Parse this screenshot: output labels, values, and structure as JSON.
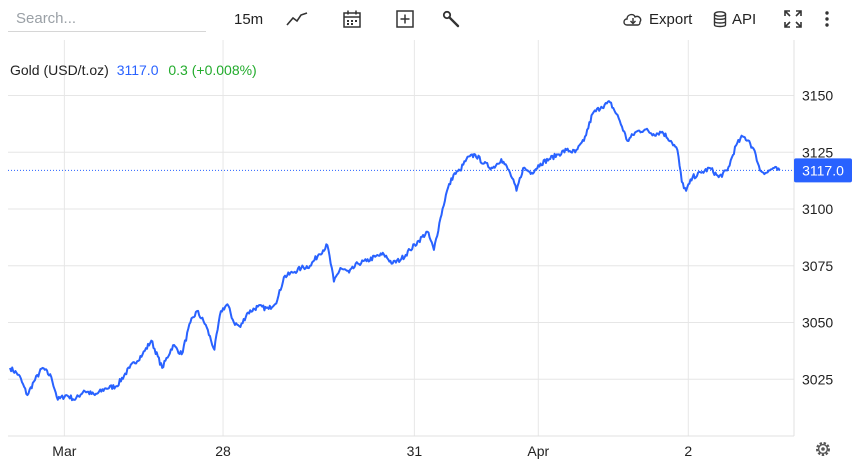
{
  "toolbar": {
    "search_placeholder": "Search...",
    "interval": "15m",
    "export_label": "Export",
    "api_label": "API"
  },
  "legend": {
    "symbol": "Gold (USD/t.oz)",
    "price": "3117.0",
    "change": "0.3 (+0.008%)"
  },
  "colors": {
    "line": "#2962ff",
    "up": "#22ab2c",
    "badge": "#2962ff",
    "grid": "#e6e6e6"
  },
  "chart_data": {
    "type": "line",
    "ylim": [
      3000,
      3160
    ],
    "y_ticks": [
      3025,
      3050,
      3075,
      3100,
      3125,
      3150
    ],
    "x_ticks": [
      {
        "label": "Mar",
        "idx": 50
      },
      {
        "label": "28",
        "idx": 196
      },
      {
        "label": "31",
        "idx": 372
      },
      {
        "label": "Apr",
        "idx": 486
      },
      {
        "label": "2",
        "idx": 624
      }
    ],
    "last_price": 3117.0,
    "anchors": [
      [
        0,
        3030
      ],
      [
        8,
        3027
      ],
      [
        16,
        3018
      ],
      [
        22,
        3024
      ],
      [
        30,
        3030
      ],
      [
        38,
        3026
      ],
      [
        44,
        3016
      ],
      [
        52,
        3018
      ],
      [
        60,
        3016
      ],
      [
        68,
        3020
      ],
      [
        78,
        3018
      ],
      [
        88,
        3021
      ],
      [
        98,
        3022
      ],
      [
        110,
        3030
      ],
      [
        122,
        3036
      ],
      [
        130,
        3042
      ],
      [
        140,
        3030
      ],
      [
        150,
        3040
      ],
      [
        158,
        3036
      ],
      [
        166,
        3050
      ],
      [
        172,
        3055
      ],
      [
        180,
        3049
      ],
      [
        188,
        3038
      ],
      [
        194,
        3055
      ],
      [
        200,
        3058
      ],
      [
        206,
        3050
      ],
      [
        212,
        3048
      ],
      [
        218,
        3054
      ],
      [
        228,
        3057
      ],
      [
        238,
        3056
      ],
      [
        246,
        3060
      ],
      [
        252,
        3070
      ],
      [
        260,
        3072
      ],
      [
        268,
        3074
      ],
      [
        276,
        3075
      ],
      [
        284,
        3080
      ],
      [
        292,
        3084
      ],
      [
        298,
        3068
      ],
      [
        304,
        3074
      ],
      [
        312,
        3072
      ],
      [
        320,
        3076
      ],
      [
        328,
        3077
      ],
      [
        336,
        3079
      ],
      [
        344,
        3080
      ],
      [
        352,
        3076
      ],
      [
        360,
        3078
      ],
      [
        368,
        3082
      ],
      [
        376,
        3086
      ],
      [
        384,
        3090
      ],
      [
        390,
        3082
      ],
      [
        396,
        3096
      ],
      [
        402,
        3108
      ],
      [
        408,
        3115
      ],
      [
        414,
        3117
      ],
      [
        420,
        3122
      ],
      [
        428,
        3124
      ],
      [
        436,
        3120
      ],
      [
        444,
        3118
      ],
      [
        452,
        3122
      ],
      [
        460,
        3116
      ],
      [
        466,
        3108
      ],
      [
        472,
        3118
      ],
      [
        480,
        3116
      ],
      [
        488,
        3120
      ],
      [
        496,
        3122
      ],
      [
        504,
        3124
      ],
      [
        512,
        3126
      ],
      [
        520,
        3125
      ],
      [
        528,
        3130
      ],
      [
        536,
        3142
      ],
      [
        544,
        3145
      ],
      [
        552,
        3147
      ],
      [
        560,
        3140
      ],
      [
        568,
        3130
      ],
      [
        576,
        3134
      ],
      [
        584,
        3135
      ],
      [
        592,
        3133
      ],
      [
        600,
        3134
      ],
      [
        608,
        3130
      ],
      [
        614,
        3126
      ],
      [
        618,
        3112
      ],
      [
        622,
        3108
      ],
      [
        628,
        3114
      ],
      [
        636,
        3116
      ],
      [
        644,
        3118
      ],
      [
        652,
        3114
      ],
      [
        660,
        3117
      ],
      [
        668,
        3128
      ],
      [
        674,
        3132
      ],
      [
        680,
        3130
      ],
      [
        686,
        3124
      ],
      [
        690,
        3117
      ],
      [
        696,
        3116
      ],
      [
        702,
        3118
      ],
      [
        708,
        3117
      ]
    ]
  }
}
